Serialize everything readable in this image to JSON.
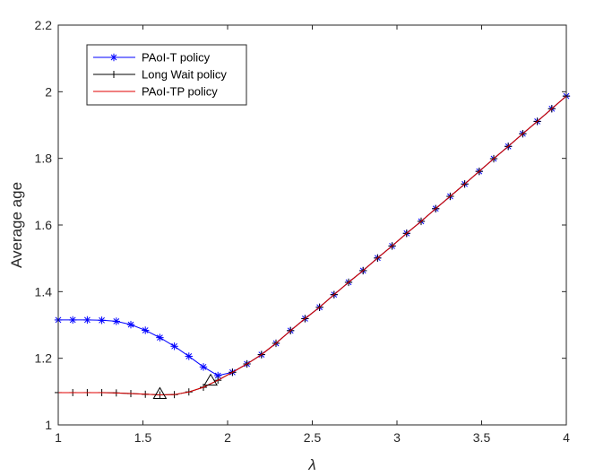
{
  "chart_data": {
    "type": "line",
    "xlabel": "λ",
    "ylabel": "Average age",
    "xlim": [
      1,
      4
    ],
    "ylim": [
      1,
      2.2
    ],
    "x_ticks": [
      1,
      1.5,
      2,
      2.5,
      3,
      3.5,
      4
    ],
    "x_tick_labels": [
      "1",
      "1.5",
      "2",
      "2.5",
      "3",
      "3.5",
      "4"
    ],
    "y_ticks": [
      1,
      1.2,
      1.4,
      1.6,
      1.8,
      2,
      2.2
    ],
    "y_tick_labels": [
      "1",
      "1.2",
      "1.4",
      "1.6",
      "1.8",
      "2",
      "2.2"
    ],
    "grid": false,
    "legend_position": "top-left",
    "series": [
      {
        "name": "PAoI-T policy",
        "color": "#0000ff",
        "marker": "asterisk",
        "x": [
          1.0,
          1.0857,
          1.1714,
          1.2571,
          1.3429,
          1.4286,
          1.5143,
          1.6,
          1.6857,
          1.7714,
          1.8571,
          1.9429,
          2.0286,
          2.1143,
          2.2,
          2.2857,
          2.3714,
          2.4571,
          2.5429,
          2.6286,
          2.7143,
          2.8,
          2.8857,
          2.9714,
          3.0571,
          3.1429,
          3.2286,
          3.3143,
          3.4,
          3.4857,
          3.5714,
          3.6571,
          3.7429,
          3.8286,
          3.9143,
          4.0
        ],
        "y": [
          1.315,
          1.315,
          1.315,
          1.314,
          1.311,
          1.301,
          1.284,
          1.262,
          1.236,
          1.206,
          1.174,
          1.148,
          1.158,
          1.183,
          1.211,
          1.245,
          1.283,
          1.319,
          1.353,
          1.391,
          1.428,
          1.463,
          1.501,
          1.537,
          1.575,
          1.611,
          1.649,
          1.686,
          1.723,
          1.761,
          1.799,
          1.836,
          1.874,
          1.911,
          1.949,
          1.987
        ]
      },
      {
        "name": "Long Wait policy",
        "color": "#000000",
        "marker": "plus",
        "x": [
          1.0,
          1.0857,
          1.1714,
          1.2571,
          1.3429,
          1.4286,
          1.5143,
          1.6,
          1.6857,
          1.7714,
          1.8571,
          1.9429,
          2.0286,
          2.1143,
          2.2,
          2.2857,
          2.3714,
          2.4571,
          2.5429,
          2.6286,
          2.7143,
          2.8,
          2.8857,
          2.9714,
          3.0571,
          3.1429,
          3.2286,
          3.3143,
          3.4,
          3.4857,
          3.5714,
          3.6571,
          3.7429,
          3.8286,
          3.9143,
          4.0
        ],
        "y": [
          1.097,
          1.097,
          1.097,
          1.097,
          1.096,
          1.094,
          1.092,
          1.09,
          1.091,
          1.099,
          1.113,
          1.134,
          1.158,
          1.183,
          1.211,
          1.245,
          1.283,
          1.319,
          1.353,
          1.391,
          1.428,
          1.463,
          1.501,
          1.537,
          1.575,
          1.611,
          1.649,
          1.686,
          1.723,
          1.761,
          1.799,
          1.836,
          1.874,
          1.911,
          1.949,
          1.987
        ]
      },
      {
        "name": "PAoI-TP policy",
        "color": "#e00000",
        "marker": "none",
        "x": [
          1.0,
          1.0857,
          1.1714,
          1.2571,
          1.3429,
          1.4286,
          1.5143,
          1.6,
          1.6857,
          1.7714,
          1.8571,
          1.9429,
          2.0286,
          2.1143,
          2.2,
          2.2857,
          2.3714,
          2.4571,
          2.5429,
          2.6286,
          2.7143,
          2.8,
          2.8857,
          2.9714,
          3.0571,
          3.1429,
          3.2286,
          3.3143,
          3.4,
          3.4857,
          3.5714,
          3.6571,
          3.7429,
          3.8286,
          3.9143,
          4.0
        ],
        "y": [
          1.097,
          1.097,
          1.097,
          1.097,
          1.096,
          1.094,
          1.092,
          1.09,
          1.091,
          1.099,
          1.113,
          1.134,
          1.158,
          1.183,
          1.211,
          1.245,
          1.283,
          1.319,
          1.353,
          1.391,
          1.428,
          1.463,
          1.501,
          1.537,
          1.575,
          1.611,
          1.649,
          1.686,
          1.723,
          1.761,
          1.799,
          1.836,
          1.874,
          1.911,
          1.949,
          1.987
        ]
      }
    ],
    "annotations": [
      {
        "shape": "triangle",
        "x": 1.6,
        "y": 1.09
      },
      {
        "shape": "triangle",
        "x": 1.9,
        "y": 1.13
      }
    ]
  }
}
